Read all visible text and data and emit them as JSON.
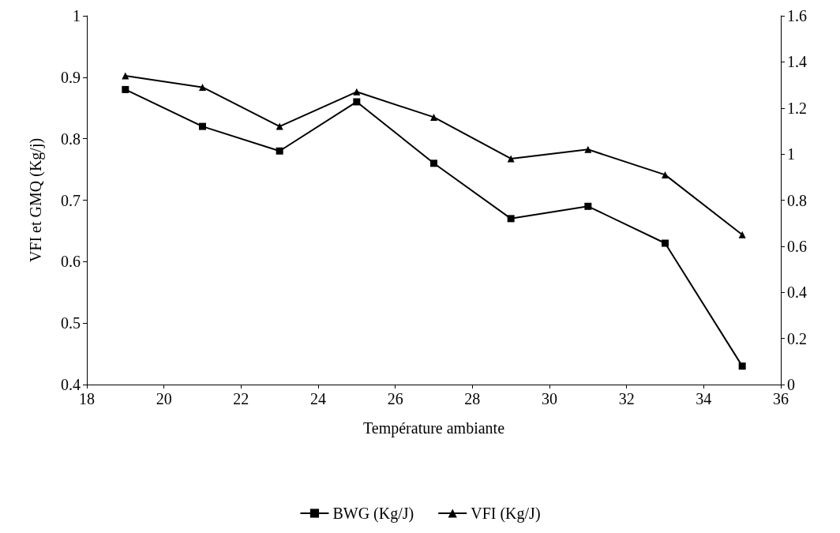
{
  "chart_data": {
    "type": "line",
    "xlabel": "Température ambiante",
    "ylabel": "VFI et GMQ (Kg/j)",
    "x": [
      19,
      21,
      23,
      25,
      27,
      29,
      31,
      33,
      35
    ],
    "series": [
      {
        "name": "BWG (Kg/J)",
        "color": "#000000",
        "marker": "square",
        "values": [
          0.88,
          0.82,
          0.78,
          0.86,
          0.76,
          0.67,
          0.69,
          0.63,
          0.43
        ]
      },
      {
        "name": "VFI (Kg/J)",
        "color": "#000000",
        "marker": "triangle",
        "axis": "y2",
        "values": [
          1.34,
          1.29,
          1.12,
          1.27,
          1.16,
          0.98,
          1.02,
          0.91,
          0.65
        ]
      }
    ],
    "xlim": [
      18,
      36
    ],
    "xticks": [
      18,
      20,
      22,
      24,
      26,
      28,
      30,
      32,
      34,
      36
    ],
    "ylim": [
      0.4,
      1
    ],
    "yticks": [
      0.4,
      0.5,
      0.6,
      0.7,
      0.8,
      0.9,
      1
    ],
    "y2lim": [
      0,
      1.6
    ],
    "y2ticks": [
      0,
      0.2,
      0.4,
      0.6,
      0.8,
      1,
      1.2,
      1.4,
      1.6
    ],
    "grid": false,
    "legend": "bottom",
    "line_style": "solid"
  }
}
